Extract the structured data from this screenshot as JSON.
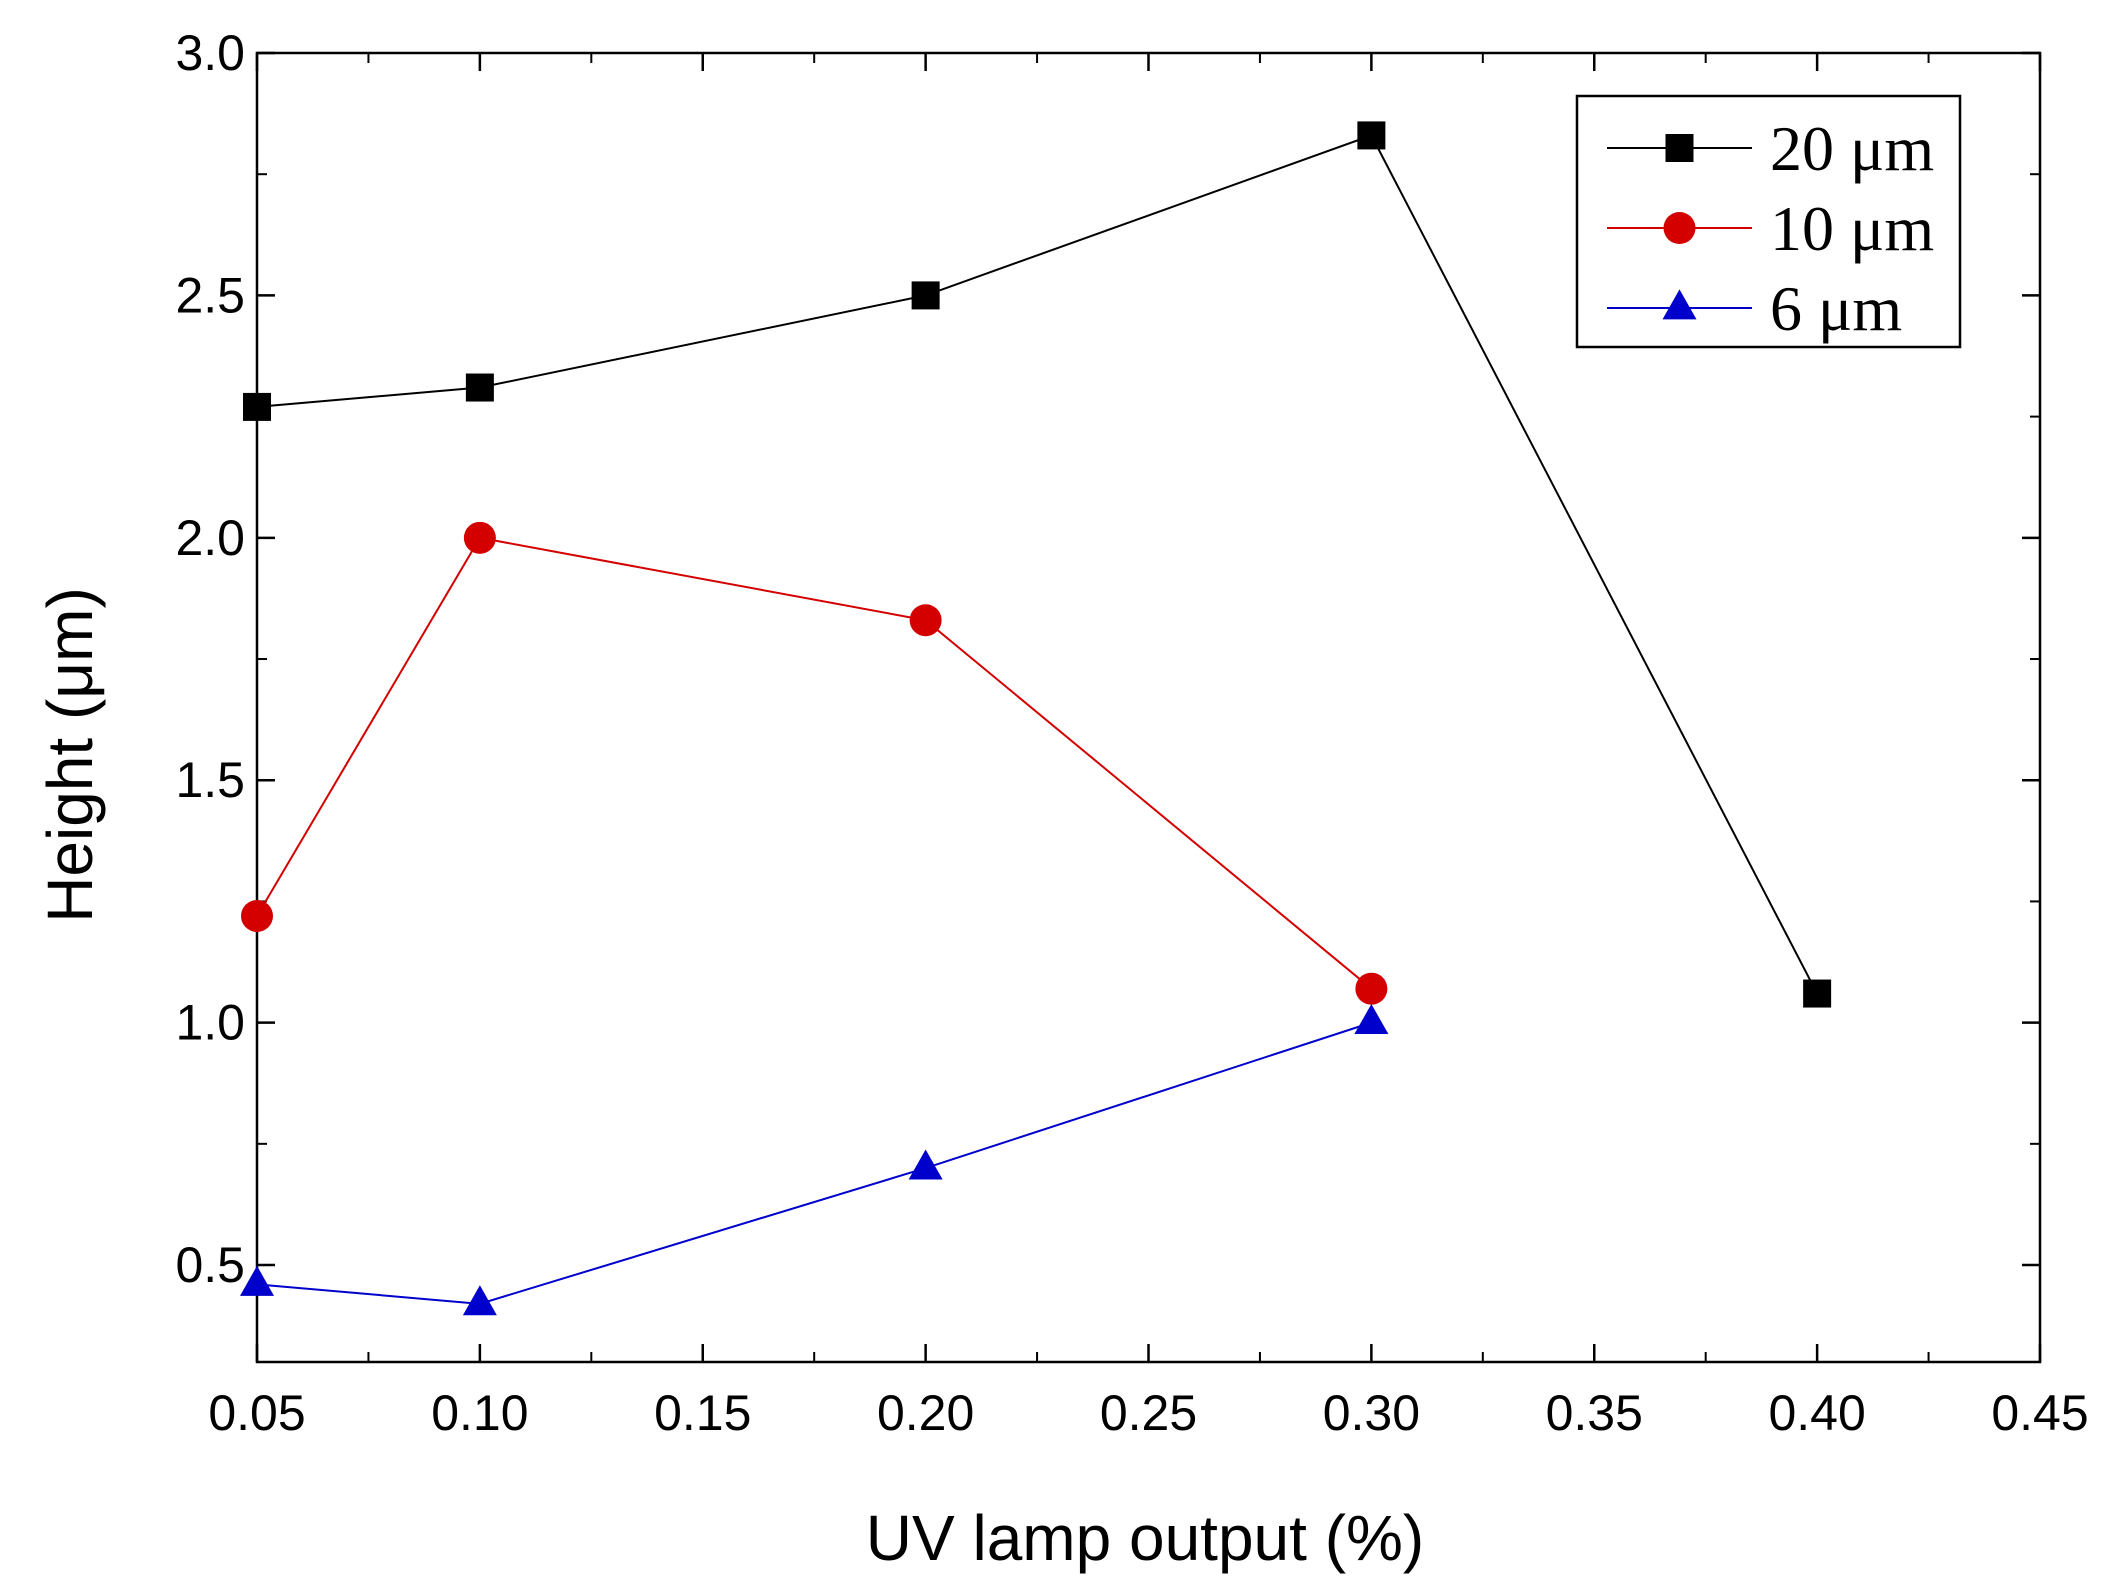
{
  "chart_data": {
    "type": "line",
    "title": "",
    "xlabel": "UV lamp output (%)",
    "ylabel": "Height (μm)",
    "xlim": [
      0.05,
      0.45
    ],
    "ylim": [
      0.3,
      3.0
    ],
    "x_ticks": [
      "0.05",
      "0.10",
      "0.15",
      "0.20",
      "0.25",
      "0.30",
      "0.35",
      "0.40",
      "0.45"
    ],
    "y_ticks": [
      "0.5",
      "1.0",
      "1.5",
      "2.0",
      "2.5",
      "3.0"
    ],
    "grid": false,
    "legend_position": "top-right",
    "series": [
      {
        "name": "20 μm",
        "color": "#000000",
        "marker": "square",
        "x": [
          0.05,
          0.1,
          0.2,
          0.3,
          0.4
        ],
        "y": [
          2.27,
          2.31,
          2.5,
          2.83,
          1.06
        ]
      },
      {
        "name": "10 μm",
        "color": "#d40000",
        "marker": "circle",
        "x": [
          0.05,
          0.1,
          0.2,
          0.3
        ],
        "y": [
          1.22,
          2.0,
          1.83,
          1.07
        ]
      },
      {
        "name": "6 μm",
        "color": "#0000cc",
        "marker": "triangle",
        "x": [
          0.05,
          0.1,
          0.2,
          0.3
        ],
        "y": [
          0.46,
          0.42,
          0.7,
          1.0
        ]
      }
    ]
  }
}
